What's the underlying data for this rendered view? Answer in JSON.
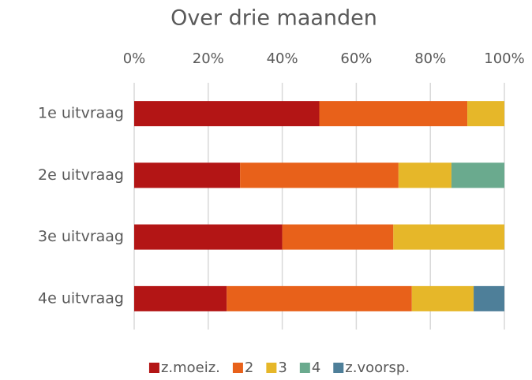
{
  "chart_data": {
    "type": "bar",
    "orientation": "horizontal",
    "stacked": true,
    "title": "Over drie maanden",
    "categories": [
      "1e uitvraag",
      "2e uitvraag",
      "3e uitvraag",
      "4e uitvraag"
    ],
    "series": [
      {
        "name": "z.moeiz.",
        "color": "#b31515",
        "values": [
          50,
          28.6,
          40,
          25
        ]
      },
      {
        "name": "2",
        "color": "#e8611a",
        "values": [
          40,
          42.8,
          30,
          50
        ]
      },
      {
        "name": "3",
        "color": "#e6b729",
        "values": [
          10,
          14.3,
          30,
          16.7
        ]
      },
      {
        "name": "4",
        "color": "#6aaa8e",
        "values": [
          null,
          14.3,
          null,
          null
        ]
      },
      {
        "name": "z.voorsp.",
        "color": "#4e7f99",
        "values": [
          null,
          null,
          null,
          8.3
        ]
      }
    ],
    "xlim": [
      0,
      100
    ],
    "xticks": [
      {
        "value": 0,
        "label": "0%"
      },
      {
        "value": 20,
        "label": "20%"
      },
      {
        "value": 40,
        "label": "40%"
      },
      {
        "value": 60,
        "label": "60%"
      },
      {
        "value": 80,
        "label": "80%"
      },
      {
        "value": 100,
        "label": "100%"
      }
    ],
    "grid": true,
    "legend": "bottom"
  }
}
